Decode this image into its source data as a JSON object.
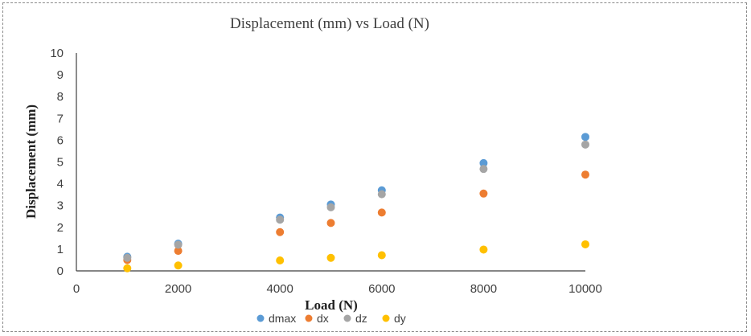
{
  "chart_data": {
    "type": "scatter",
    "title": "Displacement (mm) vs Load (N)",
    "xlabel": "Load (N)",
    "ylabel": "Displacement (mm)",
    "xlim": [
      0,
      10000
    ],
    "ylim": [
      0,
      10
    ],
    "x_ticks": [
      "0",
      "2000",
      "4000",
      "6000",
      "8000",
      "10000"
    ],
    "y_ticks": [
      "0",
      "1",
      "2",
      "3",
      "4",
      "5",
      "6",
      "7",
      "8",
      "9",
      "10"
    ],
    "grid": false,
    "legend_position": "bottom",
    "x": [
      1000,
      2000,
      4000,
      5000,
      6000,
      8000,
      10000
    ],
    "series": [
      {
        "name": "dmax",
        "color": "#5B9BD5",
        "values": [
          0.65,
          1.25,
          2.45,
          3.05,
          3.7,
          4.95,
          6.15
        ]
      },
      {
        "name": "dx",
        "color": "#ED7D31",
        "values": [
          0.5,
          0.92,
          1.78,
          2.2,
          2.68,
          3.55,
          4.42
        ]
      },
      {
        "name": "dz",
        "color": "#A5A5A5",
        "values": [
          0.6,
          1.2,
          2.35,
          2.92,
          3.52,
          4.68,
          5.8
        ]
      },
      {
        "name": "dy",
        "color": "#FFC000",
        "values": [
          0.12,
          0.25,
          0.48,
          0.6,
          0.72,
          0.98,
          1.22
        ]
      }
    ]
  }
}
